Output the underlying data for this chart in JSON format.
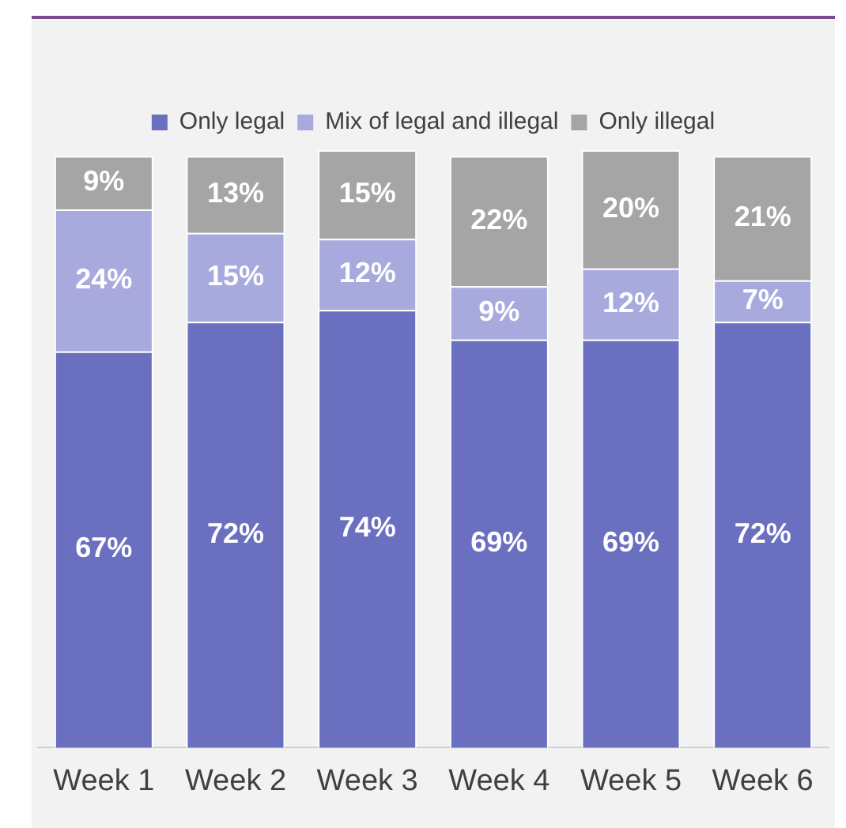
{
  "chart_data": {
    "type": "bar",
    "stacked": true,
    "legend": "top",
    "grid": false,
    "tick_labels": "x",
    "categories": [
      "Week 1",
      "Week 2",
      "Week 3",
      "Week 4",
      "Week 5",
      "Week 6"
    ],
    "series": [
      {
        "name": "Only legal",
        "color": "#6a6fc0",
        "values": [
          67,
          72,
          74,
          69,
          69,
          72
        ],
        "value_labels": [
          "67%",
          "72%",
          "74%",
          "69%",
          "69%",
          "72%"
        ]
      },
      {
        "name": "Mix of legal and illegal",
        "color": "#a8aade",
        "values": [
          24,
          15,
          12,
          9,
          12,
          7
        ],
        "value_labels": [
          "24%",
          "15%",
          "12%",
          "9%",
          "12%",
          "7%"
        ]
      },
      {
        "name": "Only illegal",
        "color": "#a5a5a5",
        "values": [
          9,
          13,
          15,
          22,
          20,
          21
        ],
        "value_labels": [
          "9%",
          "13%",
          "15%",
          "22%",
          "20%",
          "21%"
        ]
      }
    ]
  }
}
